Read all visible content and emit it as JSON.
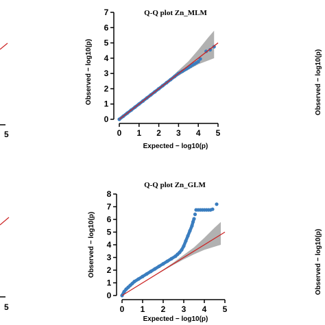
{
  "chart_data": [
    {
      "type": "scatter",
      "title": "Q-Q plot Zn_MLM",
      "xlabel": "Expected − log10(p)",
      "ylabel": "Observed − log10(p)",
      "xlim": [
        0,
        5
      ],
      "ylim": [
        0,
        7
      ],
      "x_ticks": [
        "0",
        "1",
        "2",
        "3",
        "4",
        "5"
      ],
      "y_ticks": [
        "0",
        "1",
        "2",
        "3",
        "4",
        "5",
        "6",
        "7"
      ],
      "reference_line": [
        [
          0,
          0
        ],
        [
          5,
          5
        ]
      ],
      "band": {
        "x": [
          0,
          1,
          2,
          2.5,
          3,
          3.5,
          4,
          4.5,
          4.8
        ],
        "lower": [
          0,
          1,
          1.95,
          2.42,
          2.85,
          3.25,
          3.6,
          3.85,
          4.0
        ],
        "upper": [
          0,
          1,
          2.05,
          2.6,
          3.2,
          3.8,
          4.55,
          5.35,
          5.8
        ]
      },
      "points": {
        "x": [
          0,
          0.2,
          0.4,
          0.6,
          0.8,
          1.0,
          1.2,
          1.4,
          1.6,
          1.8,
          2.0,
          2.2,
          2.4,
          2.6,
          2.8,
          3.0,
          3.2,
          3.4,
          3.5,
          3.6,
          3.7,
          3.8,
          3.9,
          4.0,
          4.1,
          4.4,
          4.6,
          4.8
        ],
        "y": [
          0,
          0.2,
          0.4,
          0.6,
          0.8,
          1.0,
          1.2,
          1.4,
          1.6,
          1.8,
          2.0,
          2.2,
          2.4,
          2.6,
          2.8,
          3.0,
          3.15,
          3.3,
          3.38,
          3.46,
          3.55,
          3.62,
          3.7,
          3.78,
          3.95,
          4.45,
          4.55,
          4.75
        ]
      }
    },
    {
      "type": "scatter",
      "title": "Q-Q plot Zn_GLM",
      "xlabel": "Expected − log10(p)",
      "ylabel": "Observed − log10(p)",
      "xlim": [
        0,
        5
      ],
      "ylim": [
        0,
        8
      ],
      "x_ticks": [
        "0",
        "1",
        "2",
        "3",
        "4",
        "5"
      ],
      "y_ticks": [
        "0",
        "1",
        "2",
        "3",
        "4",
        "5",
        "6",
        "7",
        "8"
      ],
      "reference_line": [
        [
          0,
          0
        ],
        [
          5,
          5
        ]
      ],
      "band": {
        "x": [
          0,
          1,
          2,
          2.5,
          3,
          3.5,
          4,
          4.5,
          4.8
        ],
        "lower": [
          0,
          1,
          1.95,
          2.42,
          2.85,
          3.25,
          3.6,
          3.85,
          4.0
        ],
        "upper": [
          0,
          1,
          2.05,
          2.6,
          3.2,
          3.8,
          4.55,
          5.35,
          5.8
        ]
      },
      "points": {
        "x": [
          0,
          0.1,
          0.2,
          0.3,
          0.4,
          0.5,
          0.6,
          0.8,
          1.0,
          1.2,
          1.4,
          1.6,
          1.8,
          2.0,
          2.2,
          2.4,
          2.6,
          2.7,
          2.8,
          2.9,
          3.0,
          3.1,
          3.2,
          3.3,
          3.4,
          3.45,
          3.5,
          3.55,
          3.6,
          3.7,
          3.8,
          3.9,
          4.0,
          4.1,
          4.2,
          4.3,
          4.4,
          4.6
        ],
        "y": [
          0,
          0.3,
          0.5,
          0.65,
          0.8,
          0.95,
          1.1,
          1.3,
          1.5,
          1.7,
          1.9,
          2.1,
          2.3,
          2.5,
          2.7,
          2.9,
          3.1,
          3.25,
          3.4,
          3.6,
          3.9,
          4.3,
          4.7,
          5.1,
          5.5,
          5.8,
          6.05,
          6.4,
          6.75,
          6.75,
          6.75,
          6.75,
          6.75,
          6.75,
          6.75,
          6.75,
          6.8,
          7.2
        ]
      }
    }
  ],
  "edge_fragments": {
    "top_left_tick": "5",
    "bottom_left_tick": "5",
    "right_axis_label": "Observed − log10(p)"
  },
  "colors": {
    "points": "#3a7dbf",
    "reference_line": "#cc2222",
    "band": "#a9a9a9",
    "axis": "#000000"
  }
}
